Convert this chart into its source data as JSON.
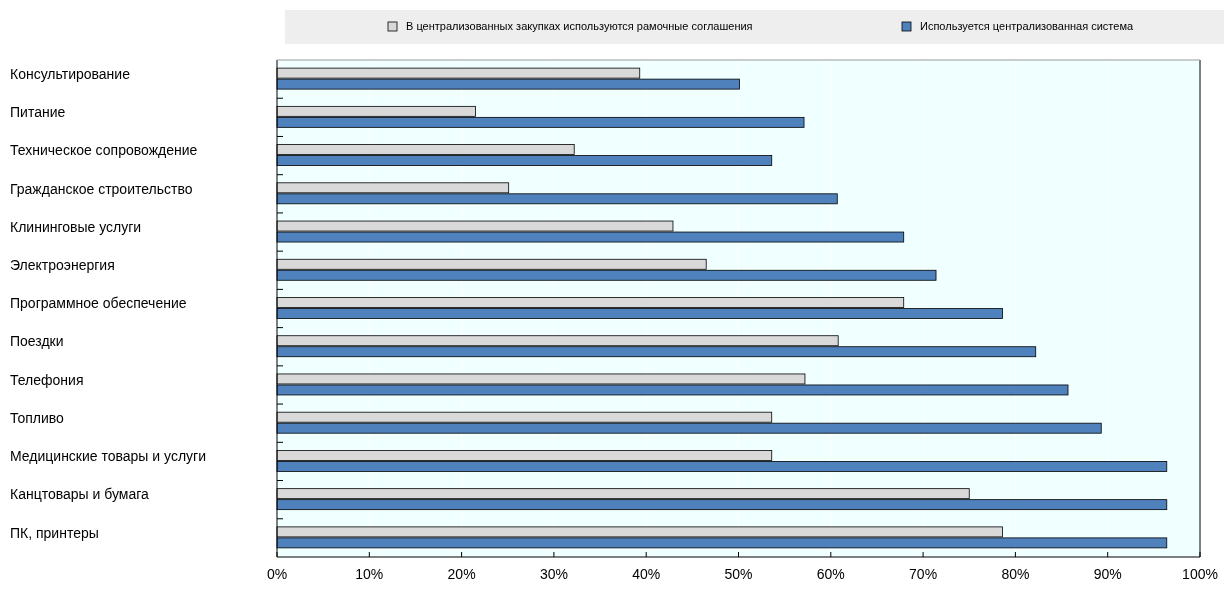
{
  "chart_data": {
    "type": "bar",
    "orientation": "horizontal",
    "categories": [
      "Консультирование",
      "Питание",
      "Техническое сопровождение",
      "Гражданское строительство",
      "Клининговые услуги",
      "Электроэнергия",
      "Программное обеспечение",
      "Поездки",
      "Телефония",
      "Топливо",
      "Медицинские товары и услуги",
      "Канцтовары и бумага",
      "ПК, принтеры"
    ],
    "series": [
      {
        "name": "В централизованных закупках используются рамочные соглашения",
        "color": "#d9d9d9",
        "values": [
          39.3,
          21.5,
          32.2,
          25.1,
          42.9,
          46.5,
          67.9,
          60.8,
          57.2,
          53.6,
          53.6,
          75.0,
          78.6
        ]
      },
      {
        "name": "Используется централизованная система",
        "color": "#4f81bd",
        "values": [
          50.1,
          57.1,
          53.6,
          60.7,
          67.9,
          71.4,
          78.6,
          82.2,
          85.7,
          89.3,
          96.4,
          96.4,
          96.4
        ]
      }
    ],
    "xlim": [
      0,
      100
    ],
    "xticks": [
      {
        "value": 0,
        "label": "0%"
      },
      {
        "value": 10,
        "label": "10%"
      },
      {
        "value": 20,
        "label": "20%"
      },
      {
        "value": 30,
        "label": "30%"
      },
      {
        "value": 40,
        "label": "40%"
      },
      {
        "value": 50,
        "label": "50%"
      },
      {
        "value": 60,
        "label": "60%"
      },
      {
        "value": 70,
        "label": "70%"
      },
      {
        "value": 80,
        "label": "80%"
      },
      {
        "value": 90,
        "label": "90%"
      },
      {
        "value": 100,
        "label": "100%"
      }
    ],
    "grid": "x",
    "legend": "top"
  }
}
